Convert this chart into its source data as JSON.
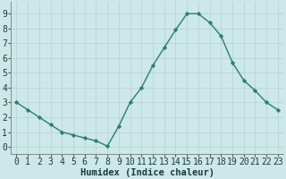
{
  "x": [
    0,
    1,
    2,
    3,
    4,
    5,
    6,
    7,
    8,
    9,
    10,
    11,
    12,
    13,
    14,
    15,
    16,
    17,
    18,
    19,
    20,
    21,
    22,
    23
  ],
  "y": [
    3.0,
    2.5,
    2.0,
    1.5,
    1.0,
    0.8,
    0.6,
    0.4,
    0.05,
    1.4,
    3.0,
    4.0,
    5.5,
    6.7,
    7.9,
    9.0,
    9.0,
    8.4,
    7.5,
    5.7,
    4.5,
    3.8,
    3.0,
    2.5
  ],
  "line_color": "#2e7d6e",
  "marker": "D",
  "marker_size": 2.2,
  "bg_color": "#cce8e8",
  "grid_color": "#b8d4d4",
  "xlabel": "Humidex (Indice chaleur)",
  "xlabel_fontsize": 7.5,
  "tick_fontsize": 7,
  "xlim": [
    -0.5,
    23.5
  ],
  "ylim": [
    -0.5,
    9.8
  ],
  "yticks": [
    0,
    1,
    2,
    3,
    4,
    5,
    6,
    7,
    8,
    9
  ],
  "xticks": [
    0,
    1,
    2,
    3,
    4,
    5,
    6,
    7,
    8,
    9,
    10,
    11,
    12,
    13,
    14,
    15,
    16,
    17,
    18,
    19,
    20,
    21,
    22,
    23
  ]
}
